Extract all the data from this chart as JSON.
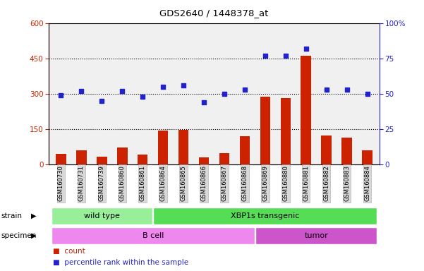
{
  "title": "GDS2640 / 1448378_at",
  "samples": [
    "GSM160730",
    "GSM160731",
    "GSM160739",
    "GSM160860",
    "GSM160861",
    "GSM160864",
    "GSM160865",
    "GSM160866",
    "GSM160867",
    "GSM160868",
    "GSM160869",
    "GSM160880",
    "GSM160881",
    "GSM160882",
    "GSM160883",
    "GSM160884"
  ],
  "counts": [
    45,
    58,
    32,
    72,
    42,
    142,
    145,
    28,
    48,
    118,
    288,
    282,
    462,
    122,
    112,
    58
  ],
  "percentiles": [
    49,
    52,
    45,
    52,
    48,
    55,
    56,
    44,
    50,
    53,
    77,
    77,
    82,
    53,
    53,
    50
  ],
  "ylim_left": [
    0,
    600
  ],
  "ylim_right": [
    0,
    100
  ],
  "yticks_left": [
    0,
    150,
    300,
    450,
    600
  ],
  "yticks_right": [
    0,
    25,
    50,
    75,
    100
  ],
  "ytick_labels_right": [
    "0",
    "25",
    "50",
    "75",
    "100%"
  ],
  "bar_color": "#cc2200",
  "dot_color": "#2222cc",
  "strain_groups": [
    {
      "label": "wild type",
      "start": 0,
      "end": 5,
      "color": "#99ee99"
    },
    {
      "label": "XBP1s transgenic",
      "start": 5,
      "end": 16,
      "color": "#55dd55"
    }
  ],
  "specimen_groups": [
    {
      "label": "B cell",
      "start": 0,
      "end": 10,
      "color": "#ee88ee"
    },
    {
      "label": "tumor",
      "start": 10,
      "end": 16,
      "color": "#cc55cc"
    }
  ],
  "legend_count_label": "count",
  "legend_pct_label": "percentile rank within the sample",
  "xlabel_strain": "strain",
  "xlabel_specimen": "specimen",
  "plot_bg_color": "#f0f0f0"
}
